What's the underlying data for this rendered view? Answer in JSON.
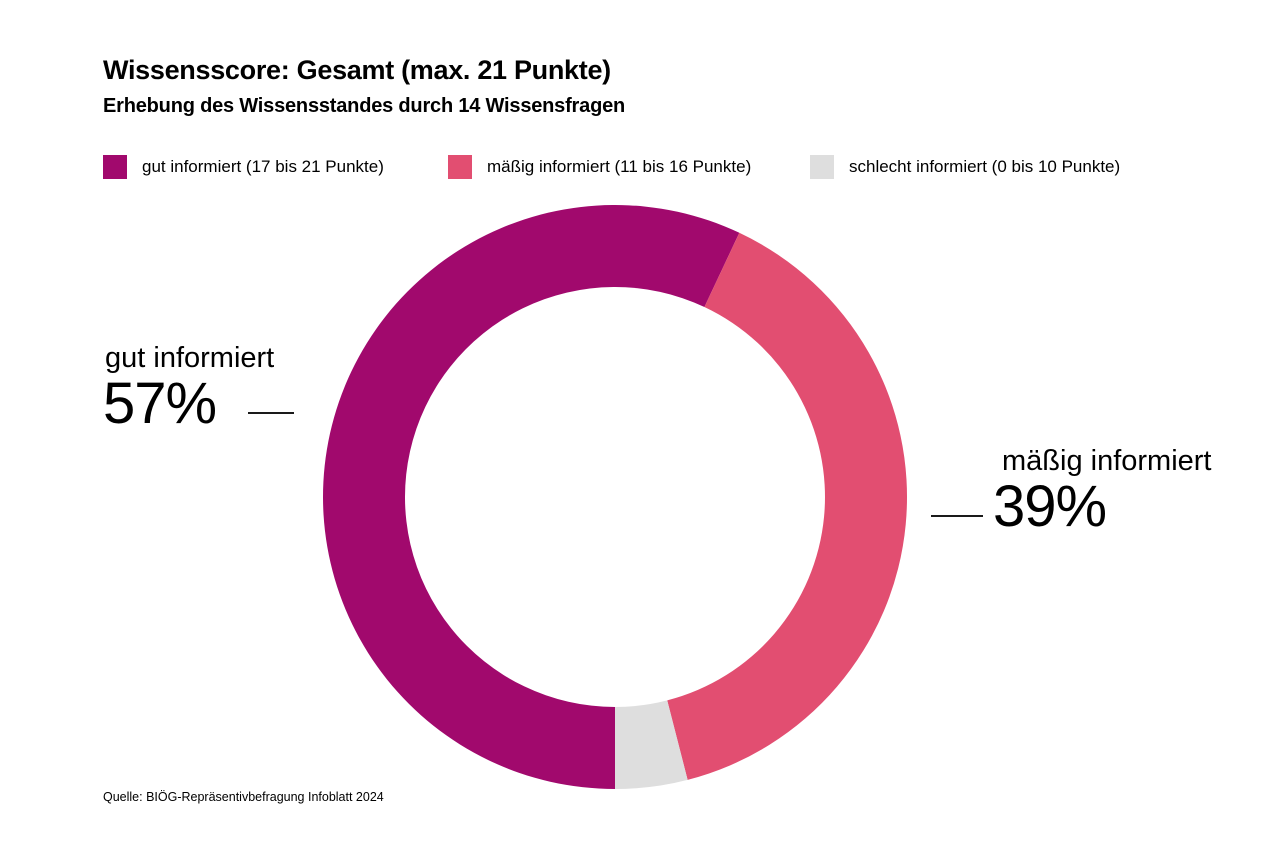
{
  "header": {
    "title": "Wissensscore: Gesamt (max. 21 Punkte)",
    "subtitle": "Erhebung des Wissensstandes durch 14 Wissensfragen"
  },
  "legend": {
    "items": [
      {
        "label": "gut informiert (17 bis 21 Punkte)",
        "color": "#A1096D"
      },
      {
        "label": "mäßig informiert (11 bis 16 Punkte)",
        "color": "#E24E71"
      },
      {
        "label": "schlecht informiert (0 bis 10 Punkte)",
        "color": "#DEDEDE"
      }
    ]
  },
  "chart_data": {
    "type": "pie",
    "subtype": "donut",
    "title": "Wissensscore: Gesamt (max. 21 Punkte)",
    "subtitle": "Erhebung des Wissensstandes durch 14 Wissensfragen",
    "unit": "%",
    "start_angle_deg": 180,
    "direction": "clockwise",
    "legend_position": "top",
    "series": [
      {
        "name": "gut informiert (17 bis 21 Punkte)",
        "value": 57,
        "color": "#A1096D"
      },
      {
        "name": "mäßig informiert (11 bis 16 Punkte)",
        "value": 39,
        "color": "#E24E71"
      },
      {
        "name": "schlecht informiert (0 bis 10 Punkte)",
        "value": 4,
        "color": "#DEDEDE"
      }
    ]
  },
  "callouts": {
    "left": {
      "name": "gut informiert",
      "value": "57%"
    },
    "right": {
      "name": "mäßig informiert",
      "value": "39%"
    }
  },
  "source": "Quelle: BIÖG-Repräsentivbefragung Infoblatt 2024"
}
